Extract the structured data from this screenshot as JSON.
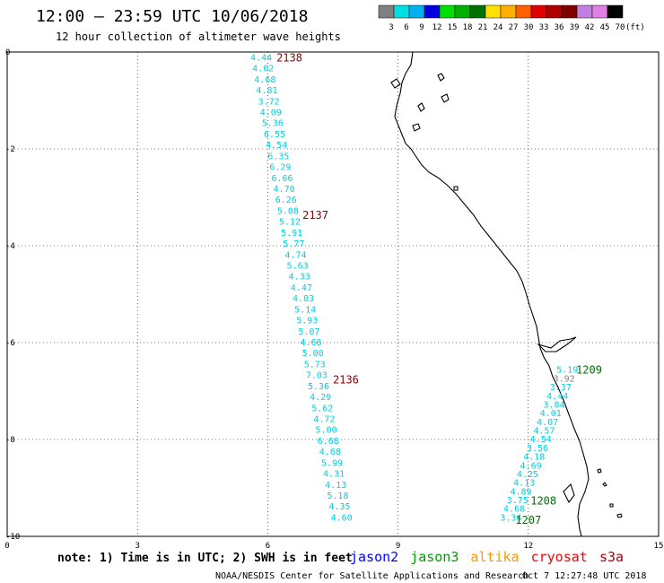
{
  "header": {
    "title": "12:00 – 23:59 UTC 10/06/2018",
    "subtitle": "12 hour collection of altimeter wave heights"
  },
  "colorbar": {
    "labels": [
      "3",
      "6",
      "9",
      "12",
      "15",
      "18",
      "21",
      "24",
      "27",
      "30",
      "33",
      "36",
      "39",
      "42",
      "45",
      "70"
    ],
    "unit": "(ft)",
    "colors": [
      "#808080",
      "#00e0e0",
      "#00b0f0",
      "#0000e0",
      "#00e000",
      "#00b000",
      "#007000",
      "#ffe000",
      "#ffb000",
      "#ff6000",
      "#e00000",
      "#b00000",
      "#800000",
      "#c080e0",
      "#e080e0",
      "#000000"
    ]
  },
  "footer": {
    "note": "note: 1) Time is in UTC; 2) SWH is in feet",
    "missions": [
      {
        "name": "jason2",
        "color": "#0000ff"
      },
      {
        "name": "jason3",
        "color": "#00a000"
      },
      {
        "name": "altika",
        "color": "#ff9900"
      },
      {
        "name": "cryosat",
        "color": "#ff0000"
      },
      {
        "name": "s3a",
        "color": "#aa0000"
      }
    ],
    "credit": "NOAA/NESDIS Center for Satellite Applications and Research",
    "timestamp": "Oct  7 12:27:48 UTC 2018"
  },
  "chart_data": {
    "type": "scatter",
    "title": "12:00 – 23:59 UTC 10/06/2018",
    "xlim": [
      0,
      15
    ],
    "ylim": [
      -10,
      0
    ],
    "xticks": [
      "0",
      "3",
      "6",
      "9",
      "12",
      "15"
    ],
    "yticks": [
      "0",
      "-2",
      "-4",
      "-6",
      "-8",
      "-10"
    ],
    "grid": true,
    "value_color": "#00d0e0",
    "tracks": [
      {
        "name": "s3a",
        "pass_labels": [
          {
            "text": "2138",
            "x": 6.2,
            "y": -0.1,
            "color": "#8b0000"
          },
          {
            "text": "2137",
            "x": 6.8,
            "y": -3.35,
            "color": "#8b0000"
          },
          {
            "text": "2136",
            "x": 7.5,
            "y": -6.75,
            "color": "#8b0000"
          }
        ],
        "x_start": 5.6,
        "y_start": -0.1,
        "x_end": 7.45,
        "y_end": -9.6,
        "values": [
          "4.44",
          "4.02",
          "4.68",
          "4.81",
          "3.72",
          "4.09",
          "5.36",
          "6.55",
          "4.54",
          "6.35",
          "6.29",
          "6.66",
          "4.70",
          "6.26",
          "5.08",
          "5.12",
          "5.91",
          "5.77",
          "4.74",
          "5.63",
          "4.33",
          "4.47",
          "4.83",
          "5.14",
          "5.93",
          "5.07",
          "4.66",
          "5.00",
          "5.73",
          "7.03",
          "5.36",
          "4.29",
          "5.62",
          "4.72",
          "5.00",
          "6.68",
          "4.68",
          "5.99",
          "4.31",
          "4.13",
          "5.18",
          "4.35",
          "4.60"
        ]
      },
      {
        "name": "jason3",
        "pass_labels": [
          {
            "text": "1209",
            "x": 13.1,
            "y": -6.55,
            "color": "#007000"
          },
          {
            "text": "1208",
            "x": 12.05,
            "y": -9.25,
            "color": "#007000"
          },
          {
            "text": "1207",
            "x": 11.7,
            "y": -9.65,
            "color": "#007000"
          }
        ],
        "x_start": 12.65,
        "y_start": -6.55,
        "x_end": 11.35,
        "y_end": -9.6,
        "values": [
          "5.19",
          "3.92",
          "3.37",
          "4.44",
          "3.84",
          "4.01",
          "4.07",
          "4.57",
          "4.54",
          "3.56",
          "4.18",
          "4.69",
          "4.25",
          "4.13",
          "4.89",
          "3.75",
          "4.68",
          "3.34"
        ]
      }
    ]
  }
}
